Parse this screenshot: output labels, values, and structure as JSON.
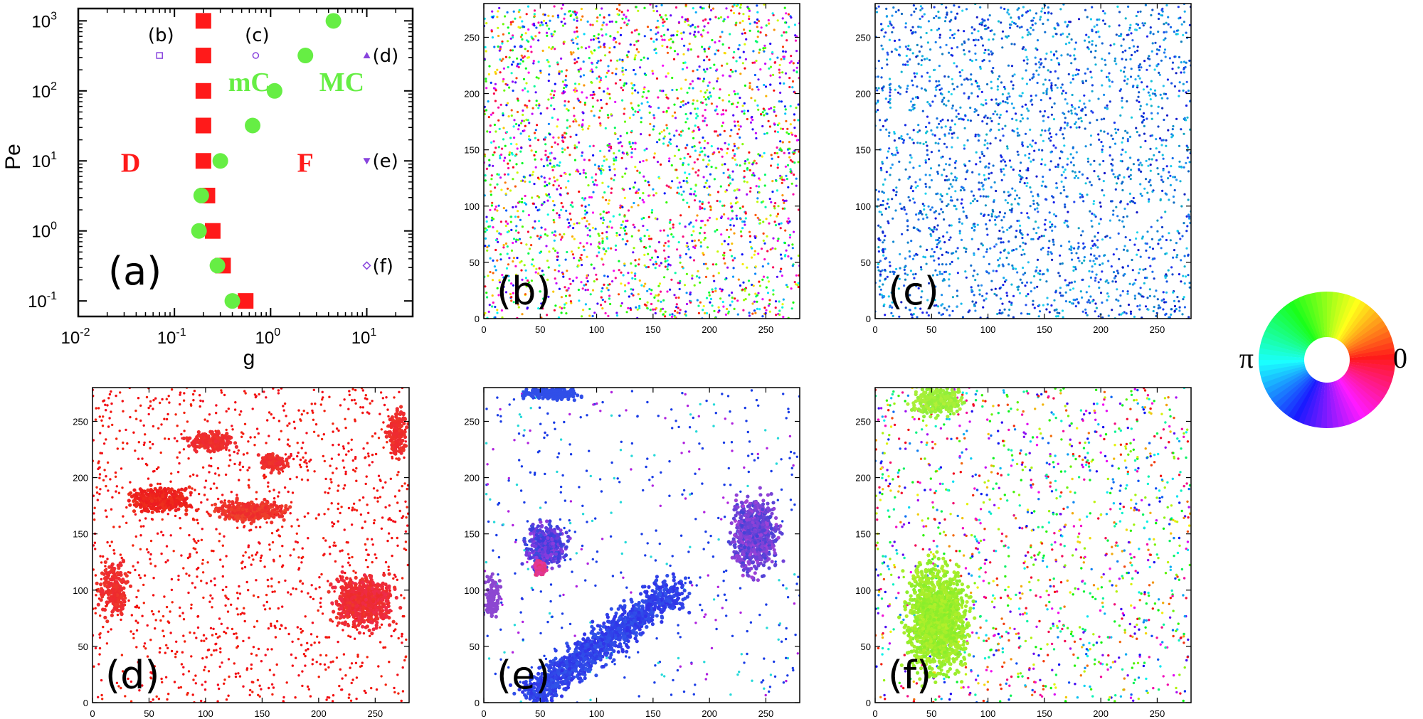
{
  "chart_data": [
    {
      "id": "a",
      "type": "scatter",
      "panel_label": "(a)",
      "xlabel": "g",
      "ylabel": "Pe",
      "xscale": "log",
      "yscale": "log",
      "xlim": [
        0.01,
        30
      ],
      "ylim": [
        0.06,
        1500
      ],
      "x_ticks": [
        {
          "value": 0.01,
          "base": "10",
          "exp": "-2"
        },
        {
          "value": 0.1,
          "base": "10",
          "exp": "-1"
        },
        {
          "value": 1,
          "base": "10",
          "exp": "0"
        },
        {
          "value": 10,
          "base": "10",
          "exp": "1"
        }
      ],
      "y_ticks": [
        {
          "value": 0.1,
          "base": "10",
          "exp": "-1"
        },
        {
          "value": 1,
          "base": "10",
          "exp": "0"
        },
        {
          "value": 10,
          "base": "10",
          "exp": "1"
        },
        {
          "value": 100,
          "base": "10",
          "exp": "2"
        },
        {
          "value": 1000,
          "base": "10",
          "exp": "3"
        }
      ],
      "series": [
        {
          "marker": "square",
          "color": "#ff1a1a",
          "points": [
            [
              0.2,
              1000
            ],
            [
              0.2,
              320
            ],
            [
              0.2,
              100
            ],
            [
              0.2,
              32
            ],
            [
              0.2,
              10
            ],
            [
              0.22,
              3.2
            ],
            [
              0.25,
              1
            ],
            [
              0.32,
              0.32
            ],
            [
              0.55,
              0.1
            ]
          ]
        },
        {
          "marker": "circle",
          "color": "#66ee44",
          "points": [
            [
              4.5,
              1000
            ],
            [
              2.3,
              320
            ],
            [
              1.1,
              100
            ],
            [
              0.65,
              32
            ],
            [
              0.3,
              10
            ],
            [
              0.19,
              3.2
            ],
            [
              0.18,
              1
            ],
            [
              0.28,
              0.32
            ],
            [
              0.4,
              0.1
            ]
          ]
        }
      ],
      "state_points": [
        {
          "label": "(b)",
          "marker": "square",
          "x": 0.07,
          "y": 320
        },
        {
          "label": "(c)",
          "marker": "circle",
          "x": 0.7,
          "y": 320
        },
        {
          "label": "(d)",
          "marker": "triangle-up",
          "x": 10,
          "y": 320
        },
        {
          "label": "(e)",
          "marker": "triangle-down",
          "x": 10,
          "y": 10
        },
        {
          "label": "(f)",
          "marker": "diamond",
          "x": 10,
          "y": 0.32
        }
      ],
      "regions": [
        {
          "label": "D",
          "x": 0.035,
          "y": 7
        },
        {
          "label": "mC",
          "x": 0.6,
          "y": 100
        },
        {
          "label": "MC",
          "x": 5.5,
          "y": 100
        },
        {
          "label": "F",
          "x": 2.3,
          "y": 7
        }
      ],
      "state_marker_color": "#8844dd",
      "region_colors": {
        "D": "#ff1a1a",
        "F": "#ff1a1a",
        "mC": "#66ee44",
        "MC": "#66ee44"
      }
    },
    {
      "id": "b",
      "type": "scatter",
      "panel_label": "(b)",
      "xlim": [
        0,
        280
      ],
      "ylim": [
        0,
        280
      ],
      "ticks": [
        0,
        50,
        100,
        150,
        200,
        250
      ]
    },
    {
      "id": "c",
      "type": "scatter",
      "panel_label": "(c)",
      "xlim": [
        0,
        280
      ],
      "ylim": [
        0,
        280
      ],
      "ticks": [
        0,
        50,
        100,
        150,
        200,
        250
      ]
    },
    {
      "id": "d",
      "type": "scatter",
      "panel_label": "(d)",
      "xlim": [
        0,
        280
      ],
      "ylim": [
        0,
        280
      ],
      "ticks": [
        0,
        50,
        100,
        150,
        200,
        250
      ]
    },
    {
      "id": "e",
      "type": "scatter",
      "panel_label": "(e)",
      "xlim": [
        0,
        280
      ],
      "ylim": [
        0,
        280
      ],
      "ticks": [
        0,
        50,
        100,
        150,
        200,
        250
      ]
    },
    {
      "id": "f",
      "type": "scatter",
      "panel_label": "(f)",
      "xlim": [
        0,
        280
      ],
      "ylim": [
        0,
        280
      ],
      "ticks": [
        0,
        50,
        100,
        150,
        200,
        250
      ]
    }
  ],
  "color_wheel": {
    "left_label": "π",
    "right_label": "0"
  }
}
